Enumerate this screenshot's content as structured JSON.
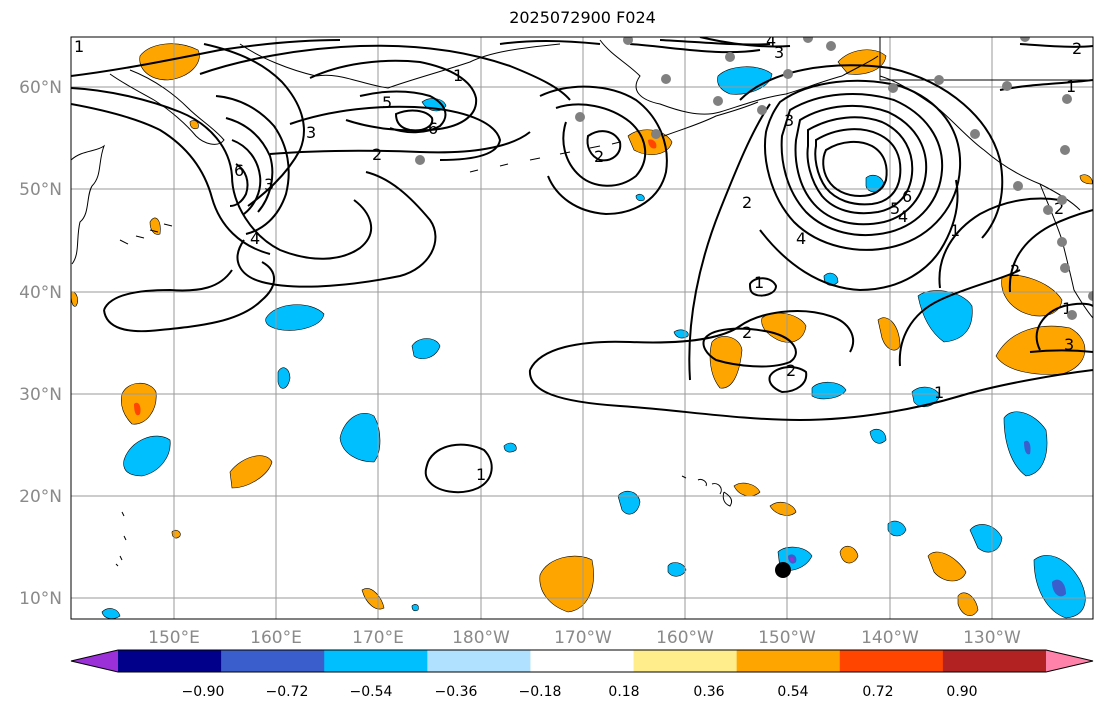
{
  "header": {
    "title": "2025072900 F024"
  },
  "colors": {
    "background": "#ffffff",
    "grid": "#9a9a9a",
    "coast": "#000000",
    "contour": "#000000",
    "station": "#808080",
    "marker": "#000000",
    "orange": "#ffa500",
    "cyan": "#00bfff",
    "dark_orange": "#ff4500",
    "royal_blue": "#3a5fcd"
  },
  "map": {
    "lat_labels": [
      "60°N",
      "50°N",
      "40°N",
      "30°N",
      "20°N",
      "10°N"
    ],
    "lon_labels": [
      "150°E",
      "160°E",
      "170°E",
      "180°W",
      "170°W",
      "160°W",
      "150°W",
      "140°W",
      "130°W"
    ],
    "contour_labels": [
      "1",
      "2",
      "3",
      "4",
      "5",
      "6",
      "3",
      "2",
      "4",
      "3",
      "6",
      "1",
      "2",
      "3",
      "4",
      "2",
      "4",
      "6",
      "5",
      "1",
      "1",
      "2",
      "1",
      "2",
      "1",
      "2",
      "2",
      "1",
      "3",
      "1"
    ]
  },
  "colorbar": {
    "colors": [
      "#9b30d9",
      "#00008b",
      "#3a5fcd",
      "#00bfff",
      "#b0e2ff",
      "#ffffff",
      "#ffec8b",
      "#ffa500",
      "#ff4500",
      "#b22222",
      "#ff82ab"
    ],
    "tick_labels": [
      "−0.90",
      "−0.72",
      "−0.54",
      "−0.36",
      "−0.18",
      "0.18",
      "0.36",
      "0.54",
      "0.72",
      "0.90"
    ]
  }
}
